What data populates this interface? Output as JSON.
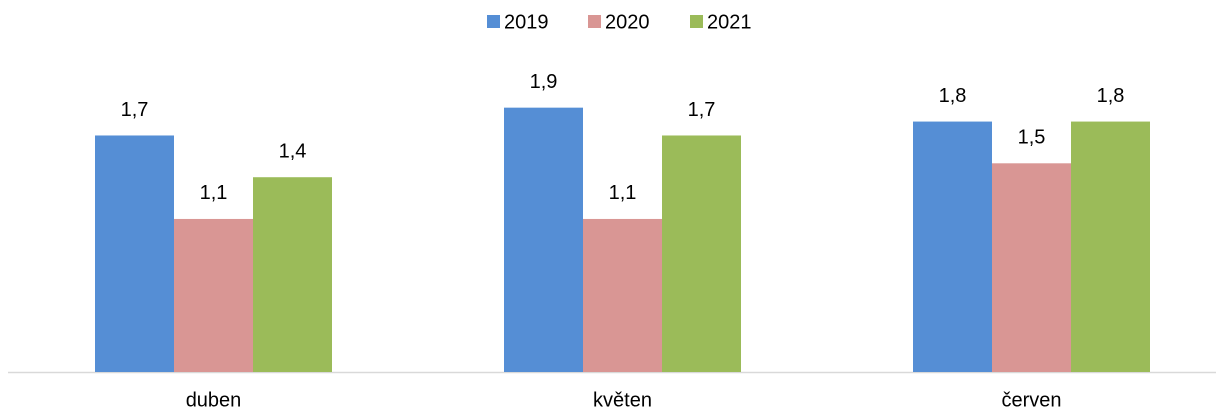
{
  "chart_data": {
    "type": "bar",
    "categories": [
      "duben",
      "květen",
      "červen"
    ],
    "series": [
      {
        "name": "2019",
        "color": "#558ed5",
        "values": [
          1.7,
          1.9,
          1.8
        ],
        "value_labels": [
          "1,7",
          "1,9",
          "1,8"
        ]
      },
      {
        "name": "2020",
        "color": "#d99694",
        "values": [
          1.1,
          1.1,
          1.5
        ],
        "value_labels": [
          "1,1",
          "1,1",
          "1,5"
        ]
      },
      {
        "name": "2021",
        "color": "#9bbb59",
        "values": [
          1.4,
          1.7,
          1.8
        ],
        "value_labels": [
          "1,4",
          "1,7",
          "1,8"
        ]
      }
    ],
    "ylim": [
      0,
      2.3
    ],
    "legend": "top"
  }
}
